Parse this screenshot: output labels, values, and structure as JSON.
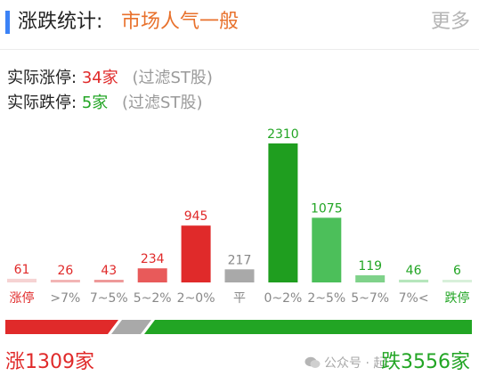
{
  "header": {
    "title": "涨跌统计:",
    "mood": "市场人气一般",
    "more": "更多"
  },
  "stats": {
    "limit_up_label": "实际涨停:",
    "limit_up_value": "34家",
    "limit_down_label": "实际跌停:",
    "limit_down_value": "5家",
    "filter_note": "(过滤ST股)"
  },
  "chart_data": {
    "type": "bar",
    "categories": [
      "涨停",
      ">7%",
      "7~5%",
      "5~2%",
      "2~0%",
      "平",
      "0~2%",
      "2~5%",
      "5~7%",
      "7%<",
      "跌停"
    ],
    "values": [
      61,
      26,
      43,
      234,
      945,
      217,
      2310,
      1075,
      119,
      46,
      6
    ],
    "colors": [
      "#f6d3d3",
      "#f2b5b5",
      "#ee9a9a",
      "#e85a5a",
      "#e02a2a",
      "#a9a9a9",
      "#1f9e1f",
      "#4cbf5a",
      "#7fd28a",
      "#b6e6bc",
      "#d8f0da"
    ],
    "label_colors": [
      "#e02a2a",
      "#e02a2a",
      "#e02a2a",
      "#e02a2a",
      "#e02a2a",
      "#888888",
      "#22a524",
      "#22a524",
      "#22a524",
      "#22a524",
      "#22a524"
    ],
    "category_colors": [
      "#e02a2a",
      "#888888",
      "#888888",
      "#888888",
      "#888888",
      "#888888",
      "#888888",
      "#888888",
      "#888888",
      "#888888",
      "#22a524"
    ]
  },
  "split_bar": {
    "up_color": "#e02a2a",
    "flat_color": "#a9a9a9",
    "down_color": "#22a524"
  },
  "totals": {
    "up": "涨1309家",
    "down": "跌3556家"
  },
  "watermark": {
    "text": "公众号 · 起"
  }
}
